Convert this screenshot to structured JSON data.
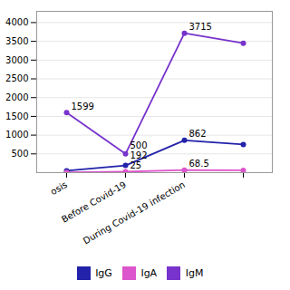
{
  "chart_data": {
    "type": "line",
    "categories": [
      "osis",
      "Before Covid-19",
      "During Covid-19 infection",
      null
    ],
    "series": [
      {
        "name": "IgG",
        "color": "#2222aa",
        "values": [
          50,
          192,
          862,
          750
        ]
      },
      {
        "name": "IgA",
        "color": "#dd55cc",
        "values": [
          8,
          25,
          68.5,
          62
        ]
      },
      {
        "name": "IgM",
        "color": "#7733cc",
        "values": [
          1599,
          500,
          3715,
          3450
        ]
      }
    ],
    "annotations": [
      {
        "text": "1599",
        "x": "osis",
        "y": 1599
      },
      {
        "text": "500",
        "x": "Before Covid-19",
        "y": 500
      },
      {
        "text": "3715",
        "x": "During Covid-19 infection",
        "y": 3715
      },
      {
        "text": "192",
        "x": "Before Covid-19",
        "y": 192
      },
      {
        "text": "862",
        "x": "During Covid-19 infection",
        "y": 862
      },
      {
        "text": "25",
        "x": "Before Covid-19",
        "y": 25
      },
      {
        "text": "68.5",
        "x": "During Covid-19 infection",
        "y": 68.5
      }
    ],
    "ylim": [
      0,
      4300
    ],
    "yticks": [
      500,
      1000,
      1500,
      2000,
      2500,
      3000,
      3500,
      4000
    ],
    "grid": true,
    "legend": "bottom",
    "marker": "circle"
  }
}
